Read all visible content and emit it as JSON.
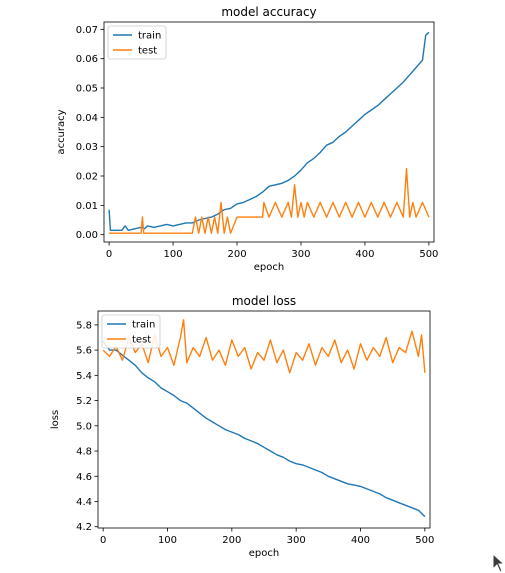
{
  "colors": {
    "train": "#1f77b4",
    "test": "#ff7f0e"
  },
  "chart_data": [
    {
      "type": "line",
      "title": "model accuracy",
      "xlabel": "epoch",
      "ylabel": "accuracy",
      "xlim": [
        -8,
        508
      ],
      "ylim": [
        -0.0025,
        0.0725
      ],
      "xticks": [
        0,
        100,
        200,
        300,
        400,
        500
      ],
      "xtick_labels": [
        "0",
        "100",
        "200",
        "300",
        "400",
        "500"
      ],
      "yticks": [
        0.0,
        0.01,
        0.02,
        0.03,
        0.04,
        0.05,
        0.06,
        0.07
      ],
      "ytick_labels": [
        "0.00",
        "0.01",
        "0.02",
        "0.03",
        "0.04",
        "0.05",
        "0.06",
        "0.07"
      ],
      "legend": "upper-left",
      "series": [
        {
          "name": "train",
          "color": "#1f77b4",
          "x": [
            0,
            2,
            5,
            10,
            20,
            25,
            30,
            40,
            50,
            55,
            60,
            70,
            80,
            90,
            100,
            110,
            120,
            130,
            140,
            150,
            160,
            170,
            180,
            190,
            200,
            210,
            220,
            230,
            240,
            250,
            260,
            270,
            280,
            290,
            300,
            310,
            320,
            330,
            340,
            350,
            360,
            370,
            380,
            390,
            400,
            410,
            420,
            430,
            440,
            450,
            460,
            470,
            480,
            490,
            495,
            500
          ],
          "y": [
            0.0085,
            0.0015,
            0.0015,
            0.0015,
            0.0015,
            0.003,
            0.0015,
            0.002,
            0.0025,
            0.002,
            0.003,
            0.0025,
            0.003,
            0.0035,
            0.003,
            0.0035,
            0.004,
            0.004,
            0.005,
            0.0055,
            0.006,
            0.007,
            0.0085,
            0.009,
            0.0105,
            0.011,
            0.012,
            0.013,
            0.0145,
            0.0165,
            0.017,
            0.0175,
            0.0185,
            0.02,
            0.022,
            0.0245,
            0.026,
            0.028,
            0.0305,
            0.0315,
            0.0335,
            0.035,
            0.037,
            0.039,
            0.041,
            0.0425,
            0.044,
            0.046,
            0.048,
            0.05,
            0.052,
            0.0545,
            0.057,
            0.0595,
            0.068,
            0.069
          ]
        },
        {
          "name": "test",
          "color": "#ff7f0e",
          "x": [
            0,
            20,
            40,
            50,
            52,
            54,
            56,
            60,
            80,
            100,
            110,
            120,
            130,
            135,
            140,
            145,
            150,
            155,
            160,
            165,
            170,
            175,
            180,
            185,
            190,
            200,
            220,
            240,
            242,
            250,
            260,
            270,
            280,
            285,
            290,
            295,
            300,
            305,
            310,
            320,
            330,
            340,
            350,
            360,
            370,
            380,
            390,
            400,
            410,
            420,
            430,
            440,
            450,
            460,
            465,
            470,
            475,
            480,
            490,
            500
          ],
          "y": [
            0.0005,
            0.0005,
            0.0005,
            0.0005,
            0.006,
            0.0005,
            0.0005,
            0.0005,
            0.0005,
            0.0005,
            0.0005,
            0.0005,
            0.0005,
            0.006,
            0.0005,
            0.006,
            0.0005,
            0.006,
            0.0005,
            0.006,
            0.0005,
            0.011,
            0.0005,
            0.006,
            0.0005,
            0.006,
            0.006,
            0.006,
            0.011,
            0.006,
            0.011,
            0.006,
            0.011,
            0.006,
            0.017,
            0.006,
            0.011,
            0.006,
            0.011,
            0.006,
            0.011,
            0.006,
            0.011,
            0.006,
            0.011,
            0.006,
            0.011,
            0.006,
            0.011,
            0.006,
            0.011,
            0.006,
            0.011,
            0.006,
            0.0225,
            0.006,
            0.011,
            0.006,
            0.011,
            0.006
          ]
        }
      ]
    },
    {
      "type": "line",
      "title": "model loss",
      "xlabel": "epoch",
      "ylabel": "loss",
      "xlim": [
        -8,
        508
      ],
      "ylim": [
        4.19,
        5.91
      ],
      "xticks": [
        0,
        100,
        200,
        300,
        400,
        500
      ],
      "xtick_labels": [
        "0",
        "100",
        "200",
        "300",
        "400",
        "500"
      ],
      "yticks": [
        4.2,
        4.4,
        4.6,
        4.8,
        5.0,
        5.2,
        5.4,
        5.6,
        5.8
      ],
      "ytick_labels": [
        "4.2",
        "4.4",
        "4.6",
        "4.8",
        "5.0",
        "5.2",
        "5.4",
        "5.6",
        "5.8"
      ],
      "legend": "upper-left",
      "series": [
        {
          "name": "train",
          "color": "#1f77b4",
          "x": [
            0,
            10,
            20,
            30,
            40,
            50,
            60,
            70,
            80,
            90,
            100,
            110,
            120,
            130,
            140,
            150,
            160,
            170,
            180,
            190,
            200,
            210,
            220,
            230,
            240,
            250,
            260,
            270,
            280,
            290,
            300,
            310,
            320,
            330,
            340,
            350,
            360,
            370,
            380,
            390,
            400,
            410,
            420,
            430,
            440,
            450,
            460,
            470,
            480,
            490,
            500
          ],
          "y": [
            5.67,
            5.6,
            5.6,
            5.56,
            5.52,
            5.48,
            5.42,
            5.38,
            5.35,
            5.3,
            5.27,
            5.24,
            5.2,
            5.18,
            5.14,
            5.1,
            5.06,
            5.03,
            5.0,
            4.97,
            4.95,
            4.93,
            4.9,
            4.88,
            4.86,
            4.83,
            4.8,
            4.77,
            4.75,
            4.72,
            4.7,
            4.69,
            4.67,
            4.65,
            4.63,
            4.6,
            4.58,
            4.56,
            4.54,
            4.53,
            4.52,
            4.5,
            4.48,
            4.46,
            4.43,
            4.41,
            4.39,
            4.37,
            4.35,
            4.33,
            4.28
          ]
        },
        {
          "name": "test",
          "color": "#ff7f0e",
          "x": [
            0,
            10,
            20,
            30,
            40,
            50,
            60,
            70,
            80,
            90,
            100,
            110,
            120,
            125,
            130,
            140,
            150,
            160,
            170,
            180,
            190,
            200,
            210,
            220,
            230,
            240,
            250,
            260,
            270,
            280,
            290,
            300,
            310,
            320,
            330,
            340,
            350,
            360,
            370,
            380,
            390,
            400,
            410,
            420,
            430,
            440,
            450,
            460,
            470,
            480,
            490,
            495,
            500
          ],
          "y": [
            5.6,
            5.55,
            5.63,
            5.52,
            5.7,
            5.58,
            5.65,
            5.5,
            5.72,
            5.55,
            5.62,
            5.48,
            5.7,
            5.84,
            5.5,
            5.62,
            5.55,
            5.7,
            5.52,
            5.6,
            5.48,
            5.68,
            5.55,
            5.62,
            5.45,
            5.58,
            5.52,
            5.68,
            5.5,
            5.6,
            5.42,
            5.58,
            5.52,
            5.65,
            5.48,
            5.62,
            5.55,
            5.68,
            5.5,
            5.6,
            5.45,
            5.65,
            5.52,
            5.62,
            5.55,
            5.7,
            5.5,
            5.62,
            5.58,
            5.75,
            5.55,
            5.72,
            5.42
          ]
        }
      ]
    }
  ]
}
